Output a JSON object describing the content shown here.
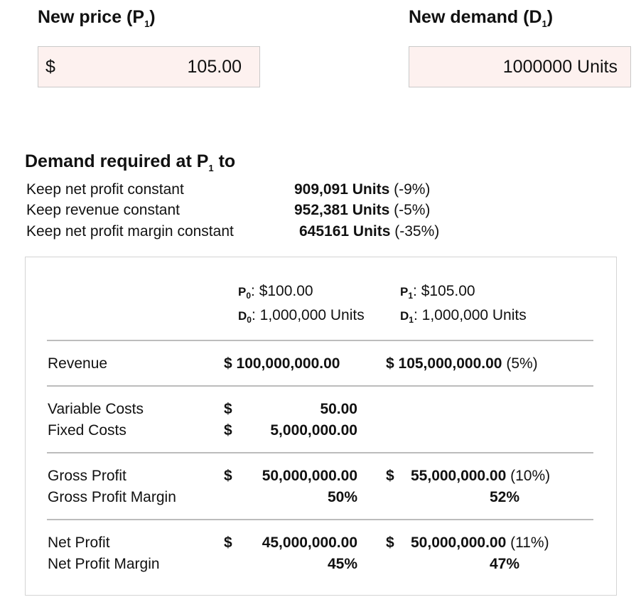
{
  "inputs": {
    "new_price_label": "New price (P",
    "new_price_sub": "1",
    "new_price_currency": "$",
    "new_price_value": "105.00",
    "new_demand_label": "New demand (D",
    "new_demand_sub": "1",
    "new_demand_value": "1000000 Units"
  },
  "required": {
    "title_prefix": "Demand required at P",
    "title_sub": "1",
    "title_suffix": " to",
    "rows": [
      {
        "label": "Keep net profit constant",
        "value": "909,091 Units",
        "pct": " (-9%)"
      },
      {
        "label": "Keep revenue constant",
        "value": "952,381 Units",
        "pct": " (-5%)"
      },
      {
        "label": "Keep net profit margin constant",
        "value": "645161 Units",
        "pct": " (-35%)"
      }
    ]
  },
  "table": {
    "p0_sym": "P",
    "p0_sub": "0",
    "p0_value": ": $100.00",
    "d0_sym": "D",
    "d0_sub": "0",
    "d0_value": ": 1,000,000 Units",
    "p1_sym": "P",
    "p1_sub": "1",
    "p1_value": ": $105.00",
    "d1_sym": "D",
    "d1_sub": "1",
    "d1_value": ": 1,000,000 Units",
    "revenue": {
      "label": "Revenue",
      "v0": "$ 100,000,000.00",
      "v1": "$ 105,000,000.00",
      "v1_pct": " (5%)"
    },
    "variable_costs": {
      "label": "Variable Costs",
      "dollar": "$",
      "v0": "50.00"
    },
    "fixed_costs": {
      "label": "Fixed Costs",
      "dollar": "$",
      "v0": "5,000,000.00"
    },
    "gross_profit": {
      "label": "Gross Profit",
      "dollar": "$",
      "v0": "50,000,000.00",
      "dollar1": "$",
      "v1": "55,000,000.00",
      "v1_pct": " (10%)"
    },
    "gross_profit_margin": {
      "label": "Gross Profit Margin",
      "v0": "50%",
      "v1": "52%"
    },
    "net_profit": {
      "label": "Net Profit",
      "dollar": "$",
      "v0": "45,000,000.00",
      "dollar1": "$",
      "v1": "50,000,000.00",
      "v1_pct": " (11%)"
    },
    "net_profit_margin": {
      "label": "Net Profit Margin",
      "v0": "45%",
      "v1": "47%"
    }
  }
}
